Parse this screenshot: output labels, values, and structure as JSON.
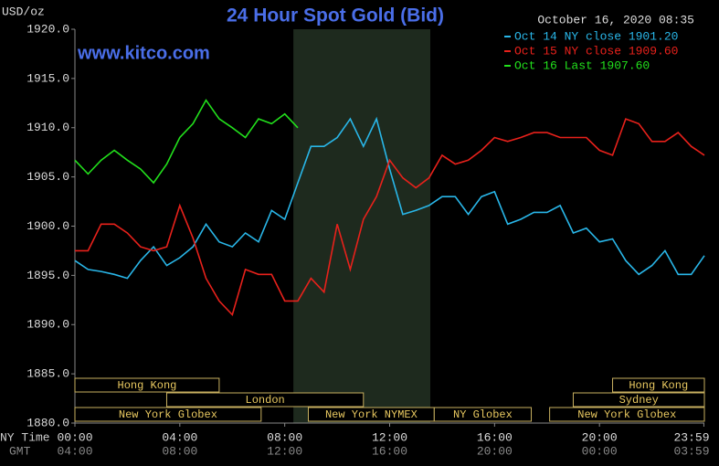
{
  "chart_data": {
    "type": "line",
    "title": "24 Hour Spot Gold (Bid)",
    "y_label": "USD/oz",
    "timestamp": "October 16, 2020 08:35",
    "watermark": "www.kitco.com",
    "x_label": "NY Time",
    "x2_label": "GMT",
    "x": [
      0,
      0.5,
      1,
      1.5,
      2,
      2.5,
      3,
      3.5,
      4,
      4.5,
      5,
      5.5,
      6,
      6.5,
      7,
      7.5,
      8,
      8.5,
      9,
      9.5,
      10,
      10.5,
      11,
      11.5,
      12,
      12.5,
      13,
      13.5,
      14,
      14.5,
      15,
      15.5,
      16,
      16.5,
      17,
      17.5,
      18,
      18.5,
      19,
      19.5,
      20,
      20.5,
      21,
      21.5,
      22,
      22.5,
      23,
      23.5,
      24
    ],
    "series": [
      {
        "name": "Oct 14 NY close 1901.20",
        "color": "#29b6e8",
        "values": [
          1896.5,
          1895.6,
          1895.4,
          1895.1,
          1894.7,
          1896.5,
          1897.9,
          1896.0,
          1896.8,
          1897.9,
          1900.2,
          1898.4,
          1897.9,
          1899.3,
          1898.4,
          1901.6,
          1900.7,
          1904.4,
          1908.1,
          1908.1,
          1909.0,
          1910.9,
          1908.1,
          1910.9,
          1905.8,
          1901.2,
          1901.6,
          1902.1,
          1903.0,
          1903.0,
          1901.2,
          1903.0,
          1903.5,
          1900.2,
          1900.7,
          1901.4,
          1901.4,
          1902.1,
          1899.3,
          1899.8,
          1898.4,
          1898.7,
          1896.5,
          1895.1,
          1896.0,
          1897.5,
          1895.1,
          1895.1,
          1897.0
        ]
      },
      {
        "name": "Oct 15 NY close 1909.60",
        "color": "#e8211b",
        "values": [
          1897.5,
          1897.5,
          1900.2,
          1900.2,
          1899.3,
          1897.9,
          1897.5,
          1897.9,
          1902.1,
          1898.8,
          1894.7,
          1892.4,
          1891.0,
          1895.6,
          1895.1,
          1895.1,
          1892.4,
          1892.4,
          1894.7,
          1893.3,
          1900.2,
          1895.6,
          1900.7,
          1903.0,
          1906.7,
          1904.9,
          1903.9,
          1904.9,
          1907.2,
          1906.3,
          1906.7,
          1907.7,
          1909.0,
          1908.6,
          1909.0,
          1909.5,
          1909.5,
          1909.0,
          1909.0,
          1909.0,
          1907.7,
          1907.2,
          1910.9,
          1910.4,
          1908.6,
          1908.6,
          1909.5,
          1908.1,
          1907.2
        ]
      },
      {
        "name": "Oct 16 Last 1907.60",
        "color": "#22e01c",
        "values": [
          1906.7,
          1905.3,
          1906.7,
          1907.7,
          1906.7,
          1905.8,
          1904.4,
          1906.3,
          1909.0,
          1910.4,
          1912.8,
          1910.9,
          1910.0,
          1909.0,
          1910.9,
          1910.4,
          1911.4,
          1910.0,
          null,
          null,
          null,
          null,
          null,
          null,
          null,
          null,
          null,
          null,
          null,
          null,
          null,
          null,
          null,
          null,
          null,
          null,
          null,
          null,
          null,
          null,
          null,
          null,
          null,
          null,
          null,
          null,
          null,
          null,
          null
        ]
      }
    ],
    "xlim": [
      0,
      24
    ],
    "xticks": [
      {
        "value": 0,
        "label": "00:00"
      },
      {
        "value": 4,
        "label": "04:00"
      },
      {
        "value": 8,
        "label": "08:00"
      },
      {
        "value": 12,
        "label": "12:00"
      },
      {
        "value": 16,
        "label": "16:00"
      },
      {
        "value": 20,
        "label": "20:00"
      },
      {
        "value": 23.98,
        "label": "23:59"
      }
    ],
    "gmt_labels": [
      "04:00",
      "08:00",
      "12:00",
      "16:00",
      "20:00",
      "00:00",
      "03:59"
    ],
    "ylim": [
      1880,
      1920
    ],
    "yticks": [
      {
        "value": 1880,
        "label": "1880.0"
      },
      {
        "value": 1885,
        "label": "1885.0"
      },
      {
        "value": 1890,
        "label": "1890.0"
      },
      {
        "value": 1895,
        "label": "1895.0"
      },
      {
        "value": 1900,
        "label": "1900.0"
      },
      {
        "value": 1905,
        "label": "1905.0"
      },
      {
        "value": 1910,
        "label": "1910.0"
      },
      {
        "value": 1915,
        "label": "1915.0"
      },
      {
        "value": 1920,
        "label": "1920.0"
      }
    ],
    "shaded_range": [
      8.33,
      13.55
    ],
    "sessions": [
      {
        "label": "Hong Kong",
        "start": 0,
        "end": 5.5,
        "row": 1
      },
      {
        "label": "London",
        "start": 3.5,
        "end": 11,
        "row": 2
      },
      {
        "label": "New York Globex",
        "start": 0,
        "end": 7.1,
        "row": 3
      },
      {
        "label": "New York NYMEX",
        "start": 8.9,
        "end": 13.7,
        "row": 3
      },
      {
        "label": "NY Globex",
        "start": 13.7,
        "end": 17.4,
        "row": 3
      },
      {
        "label": "Hong Kong",
        "start": 20.5,
        "end": 24,
        "row": 1
      },
      {
        "label": "Sydney",
        "start": 19,
        "end": 24,
        "row": 2
      },
      {
        "label": "New York Globex",
        "start": 18.1,
        "end": 24,
        "row": 3
      }
    ]
  }
}
